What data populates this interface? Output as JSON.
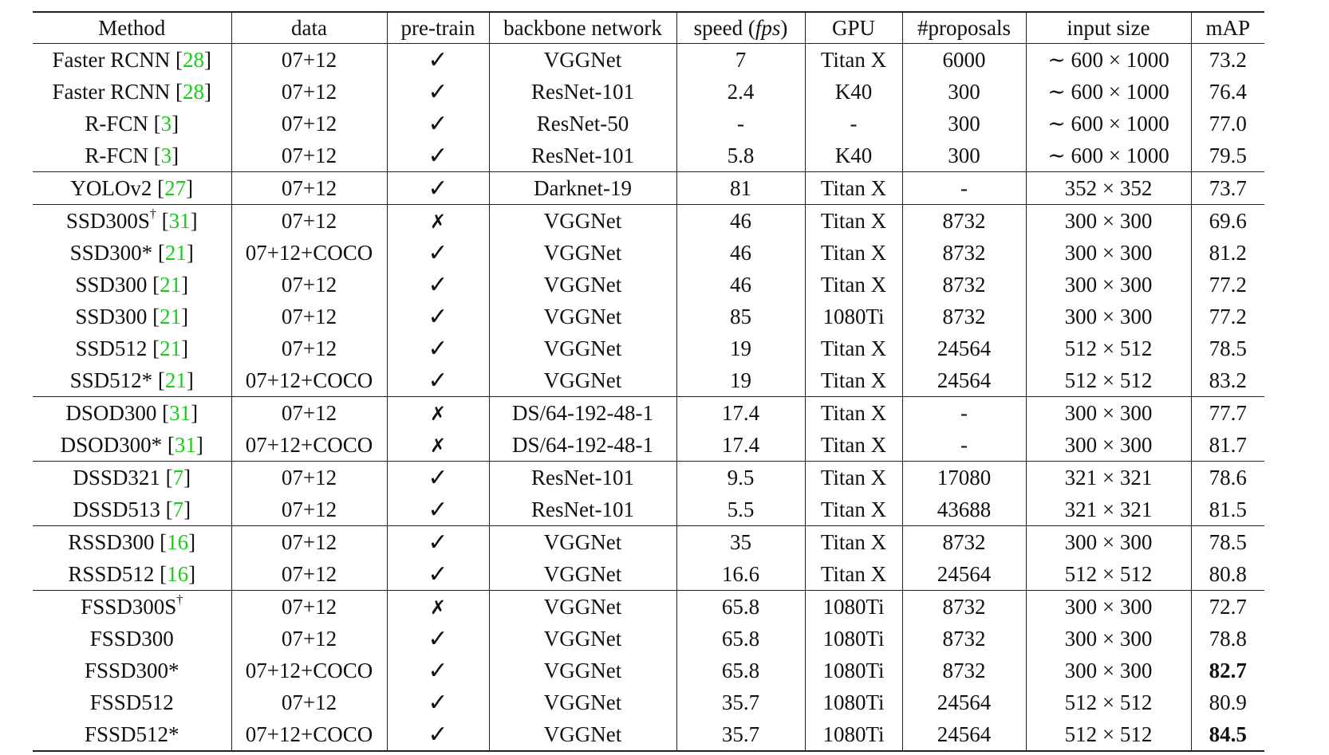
{
  "headers": {
    "method": "Method",
    "data": "data",
    "pretrain": "pre-train",
    "backbone": "backbone network",
    "speed_prefix": "speed (",
    "speed_unit": "fps",
    "speed_suffix": ")",
    "gpu": "GPU",
    "proposals": "#proposals",
    "input_size": "input size",
    "map": "mAP"
  },
  "symbols": {
    "check": "✓",
    "cross": "✗",
    "dagger": "†"
  },
  "rows": [
    {
      "name": "Faster RCNN",
      "sup": "",
      "ref": "28",
      "data": "07+12",
      "pretrain": "check",
      "backbone": "VGGNet",
      "speed": "7",
      "gpu": "Titan X",
      "proposals": "6000",
      "input": "∼ 600 × 1000",
      "map": "73.2",
      "bold": false,
      "group_start": false
    },
    {
      "name": "Faster RCNN",
      "sup": "",
      "ref": "28",
      "data": "07+12",
      "pretrain": "check",
      "backbone": "ResNet-101",
      "speed": "2.4",
      "gpu": "K40",
      "proposals": "300",
      "input": "∼ 600 × 1000",
      "map": "76.4",
      "bold": false,
      "group_start": false
    },
    {
      "name": "R-FCN",
      "sup": "",
      "ref": "3",
      "data": "07+12",
      "pretrain": "check",
      "backbone": "ResNet-50",
      "speed": "-",
      "gpu": "-",
      "proposals": "300",
      "input": "∼ 600 × 1000",
      "map": "77.0",
      "bold": false,
      "group_start": false
    },
    {
      "name": "R-FCN",
      "sup": "",
      "ref": "3",
      "data": "07+12",
      "pretrain": "check",
      "backbone": "ResNet-101",
      "speed": "5.8",
      "gpu": "K40",
      "proposals": "300",
      "input": "∼ 600 × 1000",
      "map": "79.5",
      "bold": false,
      "group_start": false
    },
    {
      "name": "YOLOv2",
      "sup": "",
      "ref": "27",
      "data": "07+12",
      "pretrain": "check",
      "backbone": "Darknet-19",
      "speed": "81",
      "gpu": "Titan X",
      "proposals": "-",
      "input": "352 × 352",
      "map": "73.7",
      "bold": false,
      "group_start": true
    },
    {
      "name": "SSD300S",
      "sup": "†",
      "ref": "31",
      "data": "07+12",
      "pretrain": "cross",
      "backbone": "VGGNet",
      "speed": "46",
      "gpu": "Titan X",
      "proposals": "8732",
      "input": "300 × 300",
      "map": "69.6",
      "bold": false,
      "group_start": true
    },
    {
      "name": "SSD300*",
      "sup": "",
      "ref": "21",
      "data": "07+12+COCO",
      "pretrain": "check",
      "backbone": "VGGNet",
      "speed": "46",
      "gpu": "Titan X",
      "proposals": "8732",
      "input": "300 × 300",
      "map": "81.2",
      "bold": false,
      "group_start": false
    },
    {
      "name": "SSD300",
      "sup": "",
      "ref": "21",
      "data": "07+12",
      "pretrain": "check",
      "backbone": "VGGNet",
      "speed": "46",
      "gpu": "Titan X",
      "proposals": "8732",
      "input": "300 × 300",
      "map": "77.2",
      "bold": false,
      "group_start": false
    },
    {
      "name": "SSD300",
      "sup": "",
      "ref": "21",
      "data": "07+12",
      "pretrain": "check",
      "backbone": "VGGNet",
      "speed": "85",
      "gpu": "1080Ti",
      "proposals": "8732",
      "input": "300 × 300",
      "map": "77.2",
      "bold": false,
      "group_start": false
    },
    {
      "name": "SSD512",
      "sup": "",
      "ref": "21",
      "data": "07+12",
      "pretrain": "check",
      "backbone": "VGGNet",
      "speed": "19",
      "gpu": "Titan X",
      "proposals": "24564",
      "input": "512 × 512",
      "map": "78.5",
      "bold": false,
      "group_start": false
    },
    {
      "name": "SSD512*",
      "sup": "",
      "ref": "21",
      "data": "07+12+COCO",
      "pretrain": "check",
      "backbone": "VGGNet",
      "speed": "19",
      "gpu": "Titan X",
      "proposals": "24564",
      "input": "512 × 512",
      "map": "83.2",
      "bold": false,
      "group_start": false
    },
    {
      "name": "DSOD300",
      "sup": "",
      "ref": "31",
      "data": "07+12",
      "pretrain": "cross",
      "backbone": "DS/64-192-48-1",
      "speed": "17.4",
      "gpu": "Titan X",
      "proposals": "-",
      "input": "300 × 300",
      "map": "77.7",
      "bold": false,
      "group_start": true
    },
    {
      "name": "DSOD300*",
      "sup": "",
      "ref": "31",
      "data": "07+12+COCO",
      "pretrain": "cross",
      "backbone": "DS/64-192-48-1",
      "speed": "17.4",
      "gpu": "Titan X",
      "proposals": "-",
      "input": "300 × 300",
      "map": "81.7",
      "bold": false,
      "group_start": false
    },
    {
      "name": "DSSD321",
      "sup": "",
      "ref": "7",
      "data": "07+12",
      "pretrain": "check",
      "backbone": "ResNet-101",
      "speed": "9.5",
      "gpu": "Titan X",
      "proposals": "17080",
      "input": "321 × 321",
      "map": "78.6",
      "bold": false,
      "group_start": true
    },
    {
      "name": "DSSD513",
      "sup": "",
      "ref": "7",
      "data": "07+12",
      "pretrain": "check",
      "backbone": "ResNet-101",
      "speed": "5.5",
      "gpu": "Titan X",
      "proposals": "43688",
      "input": "321 × 321",
      "map": "81.5",
      "bold": false,
      "group_start": false
    },
    {
      "name": "RSSD300",
      "sup": "",
      "ref": "16",
      "data": "07+12",
      "pretrain": "check",
      "backbone": "VGGNet",
      "speed": "35",
      "gpu": "Titan X",
      "proposals": "8732",
      "input": "300 × 300",
      "map": "78.5",
      "bold": false,
      "group_start": true
    },
    {
      "name": "RSSD512",
      "sup": "",
      "ref": "16",
      "data": "07+12",
      "pretrain": "check",
      "backbone": "VGGNet",
      "speed": "16.6",
      "gpu": "Titan X",
      "proposals": "24564",
      "input": "512 × 512",
      "map": "80.8",
      "bold": false,
      "group_start": false
    },
    {
      "name": "FSSD300S",
      "sup": "†",
      "ref": "",
      "data": "07+12",
      "pretrain": "cross",
      "backbone": "VGGNet",
      "speed": "65.8",
      "gpu": "1080Ti",
      "proposals": "8732",
      "input": "300 × 300",
      "map": "72.7",
      "bold": false,
      "group_start": true
    },
    {
      "name": "FSSD300",
      "sup": "",
      "ref": "",
      "data": "07+12",
      "pretrain": "check",
      "backbone": "VGGNet",
      "speed": "65.8",
      "gpu": "1080Ti",
      "proposals": "8732",
      "input": "300 × 300",
      "map": "78.8",
      "bold": false,
      "group_start": false
    },
    {
      "name": "FSSD300*",
      "sup": "",
      "ref": "",
      "data": "07+12+COCO",
      "pretrain": "check",
      "backbone": "VGGNet",
      "speed": "65.8",
      "gpu": "1080Ti",
      "proposals": "8732",
      "input": "300 × 300",
      "map": "82.7",
      "bold": true,
      "group_start": false
    },
    {
      "name": "FSSD512",
      "sup": "",
      "ref": "",
      "data": "07+12",
      "pretrain": "check",
      "backbone": "VGGNet",
      "speed": "35.7",
      "gpu": "1080Ti",
      "proposals": "24564",
      "input": "512 × 512",
      "map": "80.9",
      "bold": false,
      "group_start": false
    },
    {
      "name": "FSSD512*",
      "sup": "",
      "ref": "",
      "data": "07+12+COCO",
      "pretrain": "check",
      "backbone": "VGGNet",
      "speed": "35.7",
      "gpu": "1080Ti",
      "proposals": "24564",
      "input": "512 × 512",
      "map": "84.5",
      "bold": true,
      "group_start": false
    }
  ],
  "colors": {
    "reference_link": "#19cc19",
    "rule": "#222222",
    "text": "#111111"
  }
}
